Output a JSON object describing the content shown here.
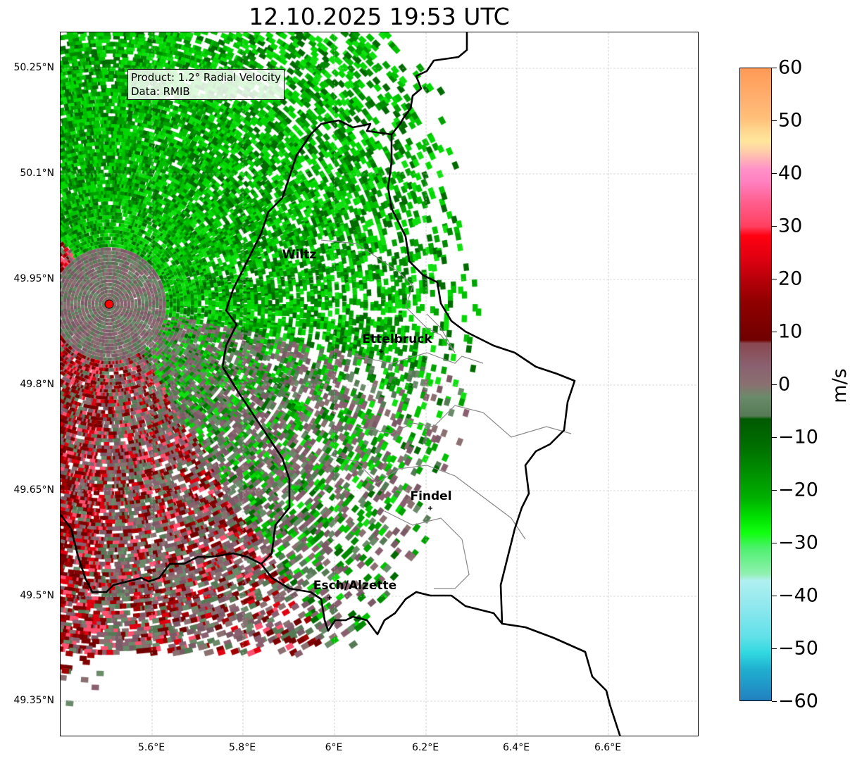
{
  "title": "12.10.2025 19:53 UTC",
  "info": {
    "product": "Product: 1.2° Radial Velocity",
    "data": "Data: RMIB"
  },
  "lat_ticks": [
    "50.25°N",
    "50.1°N",
    "49.95°N",
    "49.8°N",
    "49.65°N",
    "49.5°N",
    "49.35°N"
  ],
  "lon_ticks": [
    "5.6°E",
    "5.8°E",
    "6°E",
    "6.2°E",
    "6.4°E",
    "6.6°E"
  ],
  "cities": [
    {
      "name": "Wiltz"
    },
    {
      "name": "Ettelbruck"
    },
    {
      "name": "Findel"
    },
    {
      "name": "Esch/Alzette"
    }
  ],
  "colorbar": {
    "unit": "m/s",
    "ticks": [
      "60",
      "50",
      "40",
      "30",
      "20",
      "10",
      "0",
      "−10",
      "−20",
      "−30",
      "−40",
      "−50",
      "−60"
    ],
    "range": [
      -60,
      60
    ]
  }
}
